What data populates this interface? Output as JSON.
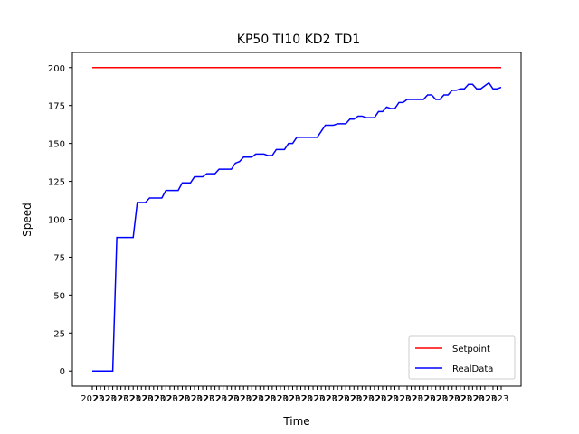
{
  "chart_data": {
    "type": "line",
    "title": "KP50 TI10 KD2 TD1",
    "xlabel": "Time",
    "ylabel": "Speed",
    "ylim": [
      -10,
      210
    ],
    "yticks": [
      0,
      25,
      50,
      75,
      100,
      125,
      150,
      175,
      200
    ],
    "x_tick_labels_note": "overlapping timestamp labels beginning with 2023",
    "x_tick_prefix": "2023",
    "grid": false,
    "legend_position": "bottom-right",
    "series": [
      {
        "name": "Setpoint",
        "color": "#ff0000",
        "values": [
          200,
          200,
          200,
          200,
          200,
          200,
          200,
          200,
          200,
          200,
          200,
          200,
          200,
          200,
          200,
          200,
          200,
          200,
          200,
          200,
          200,
          200,
          200,
          200,
          200,
          200,
          200,
          200,
          200,
          200,
          200,
          200,
          200,
          200,
          200,
          200,
          200,
          200,
          200,
          200,
          200,
          200,
          200,
          200,
          200,
          200,
          200,
          200,
          200,
          200,
          200,
          200,
          200,
          200,
          200,
          200,
          200,
          200,
          200,
          200,
          200,
          200,
          200,
          200,
          200,
          200,
          200,
          200,
          200,
          200,
          200,
          200,
          200,
          200,
          200,
          200,
          200,
          200,
          200,
          200,
          200,
          200,
          200,
          200,
          200,
          200,
          200,
          200,
          200,
          200,
          200,
          200,
          200
        ]
      },
      {
        "name": "RealData",
        "color": "#0000ff",
        "values": [
          0,
          0,
          0,
          0,
          0,
          0,
          88,
          88,
          88,
          88,
          88,
          111,
          111,
          111,
          114,
          114,
          114,
          114,
          119,
          119,
          119,
          119,
          124,
          124,
          124,
          128,
          128,
          128,
          130,
          130,
          130,
          133,
          133,
          133,
          133,
          137,
          138,
          141,
          141,
          141,
          143,
          143,
          143,
          142,
          142,
          146,
          146,
          146,
          150,
          150,
          154,
          154,
          154,
          154,
          154,
          154,
          158,
          162,
          162,
          162,
          163,
          163,
          163,
          166,
          166,
          168,
          168,
          167,
          167,
          167,
          171,
          171,
          174,
          173,
          173,
          177,
          177,
          179,
          179,
          179,
          179,
          179,
          182,
          182,
          179,
          179,
          182,
          182,
          185,
          185,
          186,
          186,
          189,
          189,
          186,
          186,
          188,
          190,
          186,
          186,
          187
        ]
      }
    ]
  }
}
